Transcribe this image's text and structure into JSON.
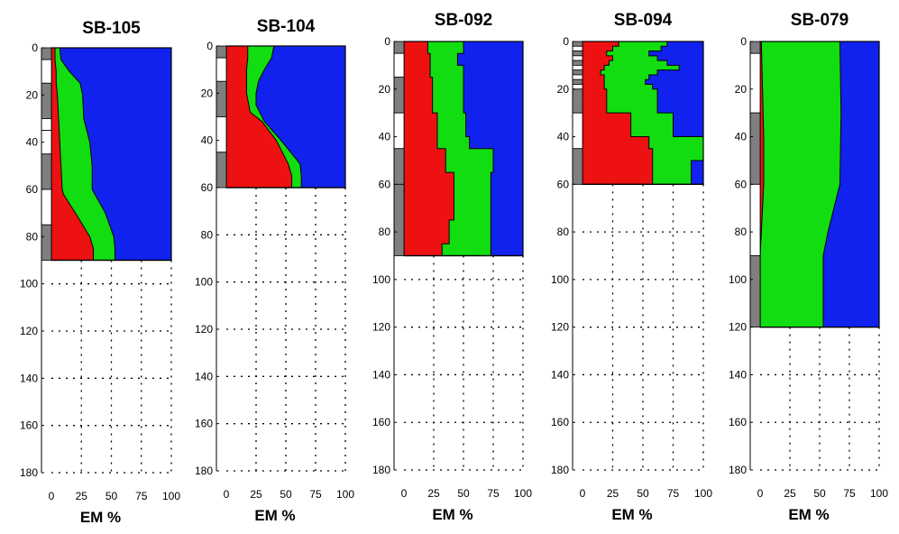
{
  "chart_data": [
    {
      "type": "area",
      "title": "SB-105",
      "xlabel": "EM %",
      "ylabel": "",
      "xticks": [
        "0",
        "25",
        "50",
        "75",
        "100"
      ],
      "yticks": [
        "0",
        "20",
        "40",
        "60",
        "80",
        "100",
        "120",
        "140",
        "160",
        "180"
      ],
      "xlim": [
        0,
        100
      ],
      "ylim": [
        0,
        180
      ],
      "y_inverted": true,
      "grid": true,
      "depth_max": 90,
      "colors": {
        "red": "#ee1111",
        "green": "#11dd11",
        "blue": "#1122ee"
      },
      "red_boundary": [
        [
          0,
          3
        ],
        [
          5,
          3
        ],
        [
          10,
          4
        ],
        [
          15,
          4
        ],
        [
          20,
          5
        ],
        [
          30,
          6
        ],
        [
          40,
          7
        ],
        [
          50,
          8
        ],
        [
          60,
          9
        ],
        [
          62,
          10
        ],
        [
          70,
          20
        ],
        [
          80,
          32
        ],
        [
          85,
          35
        ],
        [
          90,
          35
        ]
      ],
      "green_boundary": [
        [
          0,
          7
        ],
        [
          5,
          8
        ],
        [
          10,
          15
        ],
        [
          15,
          24
        ],
        [
          20,
          26
        ],
        [
          30,
          27
        ],
        [
          40,
          32
        ],
        [
          50,
          34
        ],
        [
          60,
          34
        ],
        [
          70,
          45
        ],
        [
          80,
          52
        ],
        [
          85,
          53
        ],
        [
          90,
          53
        ]
      ],
      "strata": [
        [
          0,
          5,
          "gray"
        ],
        [
          5,
          15,
          "white"
        ],
        [
          15,
          30,
          "gray"
        ],
        [
          30,
          35,
          "white"
        ],
        [
          35,
          45,
          "white"
        ],
        [
          45,
          60,
          "gray"
        ],
        [
          60,
          75,
          "white"
        ],
        [
          75,
          90,
          "gray"
        ]
      ]
    },
    {
      "type": "area",
      "title": "SB-104",
      "xlabel": "EM %",
      "ylabel": "",
      "xticks": [
        "0",
        "25",
        "50",
        "75",
        "100"
      ],
      "yticks": [
        "0",
        "20",
        "40",
        "60",
        "80",
        "100",
        "120",
        "140",
        "160",
        "180"
      ],
      "xlim": [
        0,
        100
      ],
      "ylim": [
        0,
        180
      ],
      "y_inverted": true,
      "grid": true,
      "depth_max": 60,
      "colors": {
        "red": "#ee1111",
        "green": "#11dd11",
        "blue": "#1122ee"
      },
      "red_boundary": [
        [
          0,
          18
        ],
        [
          5,
          18
        ],
        [
          10,
          17
        ],
        [
          20,
          17
        ],
        [
          28,
          20
        ],
        [
          32,
          30
        ],
        [
          40,
          42
        ],
        [
          50,
          52
        ],
        [
          55,
          55
        ],
        [
          60,
          55
        ]
      ],
      "green_boundary": [
        [
          0,
          40
        ],
        [
          5,
          38
        ],
        [
          10,
          32
        ],
        [
          15,
          27
        ],
        [
          20,
          25
        ],
        [
          25,
          25
        ],
        [
          32,
          32
        ],
        [
          40,
          46
        ],
        [
          50,
          62
        ],
        [
          55,
          63
        ],
        [
          60,
          63
        ]
      ],
      "strata": [
        [
          0,
          5,
          "gray"
        ],
        [
          5,
          15,
          "white"
        ],
        [
          15,
          30,
          "gray"
        ],
        [
          30,
          45,
          "white"
        ],
        [
          45,
          60,
          "gray"
        ]
      ]
    },
    {
      "type": "area",
      "title": "SB-092",
      "xlabel": "EM %",
      "ylabel": "",
      "xticks": [
        "0",
        "25",
        "50",
        "75",
        "100"
      ],
      "yticks": [
        "0",
        "20",
        "40",
        "60",
        "80",
        "100",
        "120",
        "140",
        "160",
        "180"
      ],
      "xlim": [
        0,
        100
      ],
      "ylim": [
        0,
        180
      ],
      "y_inverted": true,
      "grid": true,
      "depth_max": 90,
      "colors": {
        "red": "#ee1111",
        "green": "#11dd11",
        "blue": "#1122ee"
      },
      "red_boundary": [
        [
          0,
          20
        ],
        [
          5,
          20
        ],
        [
          5,
          22
        ],
        [
          15,
          22
        ],
        [
          15,
          24
        ],
        [
          30,
          24
        ],
        [
          30,
          28
        ],
        [
          45,
          28
        ],
        [
          45,
          35
        ],
        [
          55,
          35
        ],
        [
          55,
          42
        ],
        [
          75,
          42
        ],
        [
          75,
          38
        ],
        [
          85,
          38
        ],
        [
          85,
          32
        ],
        [
          90,
          32
        ]
      ],
      "green_boundary": [
        [
          0,
          50
        ],
        [
          5,
          50
        ],
        [
          5,
          45
        ],
        [
          10,
          45
        ],
        [
          10,
          50
        ],
        [
          30,
          50
        ],
        [
          30,
          52
        ],
        [
          40,
          52
        ],
        [
          40,
          55
        ],
        [
          45,
          55
        ],
        [
          45,
          75
        ],
        [
          55,
          75
        ],
        [
          55,
          73
        ],
        [
          90,
          73
        ]
      ],
      "strata": [
        [
          0,
          5,
          "gray"
        ],
        [
          5,
          15,
          "white"
        ],
        [
          15,
          30,
          "gray"
        ],
        [
          30,
          45,
          "white"
        ],
        [
          45,
          60,
          "gray"
        ],
        [
          60,
          90,
          "gray"
        ]
      ]
    },
    {
      "type": "area",
      "title": "SB-094",
      "xlabel": "EM %",
      "ylabel": "",
      "xticks": [
        "0",
        "25",
        "50",
        "75",
        "100"
      ],
      "yticks": [
        "0",
        "20",
        "40",
        "60",
        "80",
        "100",
        "120",
        "140",
        "160",
        "180"
      ],
      "xlim": [
        0,
        100
      ],
      "ylim": [
        0,
        180
      ],
      "y_inverted": true,
      "grid": true,
      "depth_max": 60,
      "colors": {
        "red": "#ee1111",
        "green": "#11dd11",
        "blue": "#1122ee"
      },
      "red_boundary": [
        [
          0,
          30
        ],
        [
          2,
          30
        ],
        [
          2,
          25
        ],
        [
          4,
          25
        ],
        [
          4,
          20
        ],
        [
          6,
          20
        ],
        [
          6,
          25
        ],
        [
          8,
          25
        ],
        [
          8,
          22
        ],
        [
          10,
          22
        ],
        [
          10,
          18
        ],
        [
          12,
          18
        ],
        [
          12,
          15
        ],
        [
          14,
          15
        ],
        [
          14,
          18
        ],
        [
          20,
          18
        ],
        [
          20,
          20
        ],
        [
          30,
          20
        ],
        [
          30,
          40
        ],
        [
          40,
          40
        ],
        [
          40,
          55
        ],
        [
          45,
          55
        ],
        [
          45,
          58
        ],
        [
          60,
          58
        ]
      ],
      "green_boundary": [
        [
          0,
          70
        ],
        [
          2,
          70
        ],
        [
          2,
          65
        ],
        [
          4,
          65
        ],
        [
          4,
          55
        ],
        [
          6,
          55
        ],
        [
          6,
          62
        ],
        [
          8,
          62
        ],
        [
          8,
          70
        ],
        [
          10,
          70
        ],
        [
          10,
          80
        ],
        [
          12,
          80
        ],
        [
          12,
          62
        ],
        [
          14,
          62
        ],
        [
          14,
          55
        ],
        [
          16,
          55
        ],
        [
          16,
          52
        ],
        [
          18,
          52
        ],
        [
          18,
          58
        ],
        [
          20,
          58
        ],
        [
          20,
          62
        ],
        [
          30,
          62
        ],
        [
          30,
          75
        ],
        [
          40,
          75
        ],
        [
          40,
          100
        ],
        [
          50,
          100
        ],
        [
          50,
          90
        ],
        [
          60,
          90
        ]
      ],
      "strata": [
        [
          0,
          2,
          "gray"
        ],
        [
          2,
          4,
          "white"
        ],
        [
          4,
          6,
          "gray"
        ],
        [
          6,
          8,
          "white"
        ],
        [
          8,
          10,
          "gray"
        ],
        [
          10,
          12,
          "white"
        ],
        [
          12,
          14,
          "gray"
        ],
        [
          14,
          16,
          "white"
        ],
        [
          16,
          18,
          "gray"
        ],
        [
          18,
          20,
          "white"
        ],
        [
          20,
          30,
          "gray"
        ],
        [
          30,
          45,
          "white"
        ],
        [
          45,
          60,
          "gray"
        ]
      ]
    },
    {
      "type": "area",
      "title": "SB-079",
      "xlabel": "EM %",
      "ylabel": "",
      "xticks": [
        "0",
        "25",
        "50",
        "75",
        "100"
      ],
      "yticks": [
        "0",
        "20",
        "40",
        "60",
        "80",
        "100",
        "120",
        "140",
        "160",
        "180"
      ],
      "xlim": [
        0,
        100
      ],
      "ylim": [
        0,
        180
      ],
      "y_inverted": true,
      "grid": true,
      "depth_max": 120,
      "colors": {
        "red": "#ee1111",
        "green": "#11dd11",
        "blue": "#1122ee"
      },
      "red_boundary": [
        [
          0,
          1
        ],
        [
          20,
          2
        ],
        [
          40,
          3
        ],
        [
          60,
          3
        ],
        [
          80,
          1
        ],
        [
          90,
          0
        ],
        [
          120,
          0
        ]
      ],
      "green_boundary": [
        [
          0,
          67
        ],
        [
          30,
          68
        ],
        [
          60,
          67
        ],
        [
          70,
          62
        ],
        [
          80,
          57
        ],
        [
          90,
          53
        ],
        [
          120,
          53
        ]
      ],
      "strata": [
        [
          0,
          5,
          "gray"
        ],
        [
          5,
          30,
          "white"
        ],
        [
          30,
          60,
          "gray"
        ],
        [
          60,
          90,
          "white"
        ],
        [
          90,
          120,
          "gray"
        ]
      ]
    }
  ]
}
